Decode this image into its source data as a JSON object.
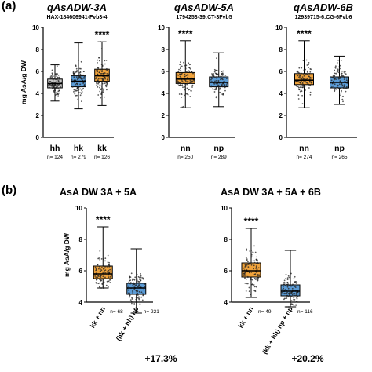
{
  "panel_labels": {
    "a": "(a)",
    "b": "(b)"
  },
  "colors": {
    "orange": "#f0a33c",
    "blue": "#5b9bd5",
    "grey": "#c8c8c8",
    "point": "#222222"
  },
  "chart_data": [
    {
      "type": "box",
      "title": "qAsADW-3A",
      "subtitle": "HAX-184606941-Fvb3-4",
      "ylabel": "mg AsA/g DW",
      "ylim": [
        0,
        10
      ],
      "yticks": [
        0,
        2,
        4,
        6,
        8,
        10
      ],
      "categories": [
        "hh",
        "hk",
        "kk"
      ],
      "n_labels": [
        "n= 124",
        "n= 279",
        "n= 126"
      ],
      "colors": [
        "grey",
        "blue",
        "orange"
      ],
      "significance": {
        "category": "kk",
        "label": "****"
      },
      "boxes": [
        {
          "min": 3.3,
          "q1": 4.5,
          "median": 4.9,
          "q3": 5.3,
          "max": 6.6
        },
        {
          "min": 2.6,
          "q1": 4.6,
          "median": 5.1,
          "q3": 5.6,
          "max": 8.6
        },
        {
          "min": 2.9,
          "q1": 5.1,
          "median": 5.6,
          "q3": 6.2,
          "max": 8.7
        }
      ]
    },
    {
      "type": "box",
      "title": "qAsADW-5A",
      "subtitle": "1794253-39:CT-3Fvb5",
      "ylabel": "",
      "ylim": [
        0,
        10
      ],
      "yticks": [
        0,
        2,
        4,
        6,
        8,
        10
      ],
      "categories": [
        "nn",
        "np"
      ],
      "n_labels": [
        "n= 250",
        "n= 289"
      ],
      "colors": [
        "orange",
        "blue"
      ],
      "significance": {
        "category": "nn",
        "label": "****"
      },
      "boxes": [
        {
          "min": 2.7,
          "q1": 4.9,
          "median": 5.3,
          "q3": 5.9,
          "max": 8.8
        },
        {
          "min": 2.8,
          "q1": 4.6,
          "median": 5.0,
          "q3": 5.5,
          "max": 7.7
        }
      ]
    },
    {
      "type": "box",
      "title": "qAsADW-6B",
      "subtitle": "12939715-6:CG-6Fvb6",
      "ylabel": "",
      "ylim": [
        0,
        10
      ],
      "yticks": [
        0,
        2,
        4,
        6,
        8,
        10
      ],
      "categories": [
        "nn",
        "np"
      ],
      "n_labels": [
        "n= 274",
        "n= 265"
      ],
      "colors": [
        "orange",
        "blue"
      ],
      "significance": {
        "category": "nn",
        "label": "****"
      },
      "boxes": [
        {
          "min": 2.7,
          "q1": 4.8,
          "median": 5.2,
          "q3": 5.8,
          "max": 8.8
        },
        {
          "min": 3.0,
          "q1": 4.5,
          "median": 5.0,
          "q3": 5.5,
          "max": 7.4
        }
      ]
    },
    {
      "type": "box",
      "title": "AsA DW 3A + 5A",
      "subtitle": "",
      "ylabel": "mg AsA/g DW",
      "ylim": [
        4,
        10
      ],
      "yticks": [
        4,
        6,
        8,
        10
      ],
      "categories": [
        "kk + nn",
        "(hk + hh) np"
      ],
      "n_labels": [
        "n= 68",
        "n= 221"
      ],
      "colors": [
        "orange",
        "blue"
      ],
      "significance": {
        "category": "kk + nn",
        "label": "****"
      },
      "percent_change": "+17.3%",
      "boxes": [
        {
          "min": 4.9,
          "q1": 5.5,
          "median": 5.8,
          "q3": 6.3,
          "max": 8.8
        },
        {
          "min": 3.3,
          "q1": 4.5,
          "median": 4.9,
          "q3": 5.2,
          "max": 7.4
        }
      ]
    },
    {
      "type": "box",
      "title": "AsA DW 3A + 5A + 6B",
      "subtitle": "",
      "ylabel": "",
      "ylim": [
        4,
        10
      ],
      "yticks": [
        4,
        6,
        8,
        10
      ],
      "categories": [
        "kk + nn",
        "(kk + hh) np + np"
      ],
      "n_labels": [
        "n= 49",
        "n= 116"
      ],
      "colors": [
        "orange",
        "blue"
      ],
      "significance": {
        "category": "kk + nn",
        "label": "****"
      },
      "percent_change": "+20.2%",
      "boxes": [
        {
          "min": 4.3,
          "q1": 5.6,
          "median": 6.0,
          "q3": 6.5,
          "max": 8.7
        },
        {
          "min": 3.7,
          "q1": 4.4,
          "median": 4.7,
          "q3": 5.1,
          "max": 7.3
        }
      ]
    }
  ]
}
